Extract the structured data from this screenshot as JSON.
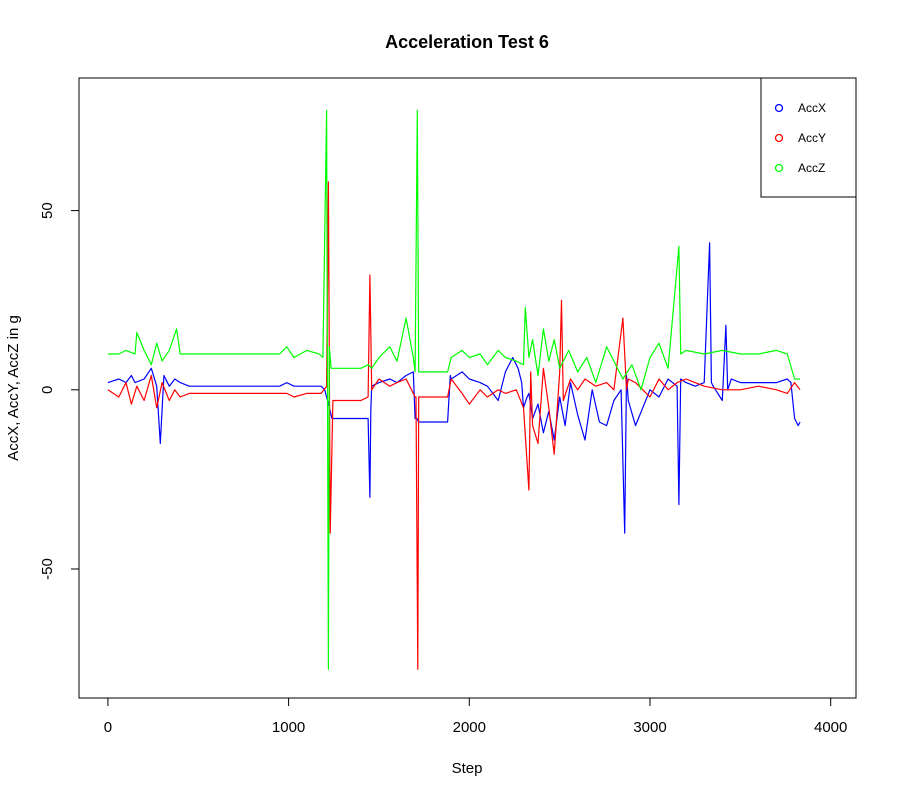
{
  "chart_data": {
    "type": "line",
    "title": "Acceleration Test 6",
    "xlabel": "Step",
    "ylabel": "AccX, AccY, AccZ in g",
    "xlim": [
      -160,
      4140
    ],
    "ylim": [
      -86,
      87
    ],
    "x_ticks": [
      0,
      1000,
      2000,
      3000,
      4000
    ],
    "x_tick_labels": [
      "0",
      "1000",
      "2000",
      "3000",
      "4000"
    ],
    "y_ticks": [
      -50,
      0,
      50
    ],
    "y_tick_labels": [
      "-50",
      "0",
      "50"
    ],
    "legend_position": "top-right",
    "grid": false,
    "series": [
      {
        "name": "AccX",
        "color": "#0000ff",
        "x": [
          0,
          60,
          100,
          130,
          150,
          200,
          240,
          270,
          290,
          310,
          340,
          370,
          400,
          450,
          500,
          600,
          800,
          950,
          990,
          1030,
          1100,
          1180,
          1200,
          1215,
          1225,
          1240,
          1300,
          1400,
          1440,
          1450,
          1455,
          1460,
          1500,
          1560,
          1600,
          1650,
          1690,
          1700,
          1710,
          1720,
          1800,
          1860,
          1880,
          1895,
          1900,
          1960,
          2000,
          2060,
          2100,
          2160,
          2200,
          2240,
          2270,
          2290,
          2300,
          2320,
          2330,
          2350,
          2380,
          2410,
          2440,
          2470,
          2500,
          2530,
          2560,
          2600,
          2640,
          2680,
          2720,
          2760,
          2800,
          2840,
          2860,
          2870,
          2880,
          2920,
          2960,
          3000,
          3050,
          3100,
          3150,
          3160,
          3170,
          3200,
          3250,
          3300,
          3330,
          3340,
          3350,
          3400,
          3420,
          3430,
          3450,
          3500,
          3600,
          3700,
          3760,
          3780,
          3800,
          3820,
          3830
        ],
        "y": [
          2,
          3,
          2,
          4,
          2,
          3,
          6,
          1,
          -15,
          4,
          1,
          3,
          2,
          1,
          1,
          1,
          1,
          1,
          2,
          1,
          1,
          1,
          0,
          -3,
          -5,
          -8,
          -8,
          -8,
          -8,
          -30,
          -6,
          1,
          2,
          3,
          2,
          4,
          5,
          -8,
          -8,
          -9,
          -9,
          -9,
          -9,
          4,
          3,
          5,
          3,
          2,
          1,
          -3,
          5,
          9,
          6,
          2,
          -5,
          -2,
          -1,
          -8,
          -4,
          -12,
          -6,
          -14,
          -2,
          -10,
          2,
          -7,
          -14,
          0,
          -9,
          -10,
          -3,
          0,
          -40,
          4,
          -3,
          -10,
          -5,
          0,
          -2,
          3,
          1,
          -32,
          3,
          2,
          1,
          2,
          41,
          2,
          1,
          -3,
          18,
          0,
          3,
          2,
          2,
          2,
          3,
          2,
          -8,
          -10,
          -9
        ]
      },
      {
        "name": "AccY",
        "color": "#ff0000",
        "x": [
          0,
          60,
          100,
          130,
          160,
          200,
          240,
          270,
          300,
          340,
          370,
          400,
          450,
          500,
          600,
          800,
          950,
          990,
          1030,
          1100,
          1180,
          1210,
          1220,
          1230,
          1245,
          1300,
          1400,
          1440,
          1450,
          1460,
          1500,
          1560,
          1600,
          1650,
          1690,
          1700,
          1705,
          1715,
          1720,
          1800,
          1860,
          1880,
          1900,
          1960,
          2000,
          2060,
          2100,
          2160,
          2200,
          2260,
          2300,
          2330,
          2340,
          2350,
          2380,
          2410,
          2440,
          2470,
          2500,
          2510,
          2520,
          2560,
          2600,
          2640,
          2700,
          2760,
          2800,
          2850,
          2870,
          2880,
          2920,
          2960,
          3000,
          3050,
          3100,
          3150,
          3200,
          3300,
          3400,
          3500,
          3600,
          3700,
          3760,
          3800,
          3830
        ],
        "y": [
          0,
          -2,
          2,
          -4,
          1,
          -3,
          4,
          -5,
          2,
          -3,
          0,
          -2,
          -1,
          -1,
          -1,
          -1,
          -1,
          -1,
          -2,
          -1,
          -1,
          1,
          58,
          -40,
          -3,
          -3,
          -3,
          -2,
          32,
          0,
          3,
          1,
          2,
          3,
          -1,
          -2,
          -2,
          -78,
          -2,
          -2,
          -2,
          -2,
          3,
          -1,
          -4,
          0,
          -2,
          0,
          -1,
          0,
          -5,
          -28,
          5,
          -10,
          -15,
          6,
          -5,
          -18,
          5,
          25,
          -3,
          3,
          0,
          3,
          1,
          2,
          0,
          20,
          0,
          3,
          2,
          0,
          -2,
          3,
          0,
          2,
          3,
          1,
          0,
          0,
          1,
          0,
          -1,
          2,
          0
        ]
      },
      {
        "name": "AccZ",
        "color": "#00ff00",
        "x": [
          0,
          60,
          100,
          150,
          160,
          200,
          240,
          270,
          300,
          340,
          380,
          400,
          450,
          500,
          600,
          800,
          950,
          990,
          1030,
          1100,
          1170,
          1190,
          1210,
          1220,
          1225,
          1235,
          1250,
          1300,
          1400,
          1440,
          1460,
          1500,
          1560,
          1600,
          1650,
          1690,
          1700,
          1712,
          1720,
          1800,
          1860,
          1880,
          1900,
          1960,
          2000,
          2060,
          2100,
          2160,
          2200,
          2260,
          2300,
          2310,
          2330,
          2350,
          2380,
          2410,
          2440,
          2470,
          2500,
          2550,
          2600,
          2650,
          2700,
          2760,
          2800,
          2850,
          2900,
          2950,
          3000,
          3050,
          3100,
          3160,
          3170,
          3200,
          3300,
          3400,
          3500,
          3600,
          3700,
          3760,
          3800,
          3830
        ],
        "y": [
          10,
          10,
          11,
          10,
          16,
          11,
          7,
          13,
          8,
          11,
          17,
          10,
          10,
          10,
          10,
          10,
          10,
          12,
          9,
          11,
          10,
          9,
          78,
          -78,
          12,
          6,
          6,
          6,
          6,
          7,
          6,
          9,
          12,
          8,
          20,
          9,
          5,
          78,
          5,
          5,
          5,
          5,
          9,
          11,
          9,
          10,
          7,
          11,
          9,
          8,
          7,
          23,
          9,
          14,
          4,
          17,
          8,
          14,
          6,
          11,
          5,
          9,
          2,
          12,
          8,
          3,
          7,
          0,
          9,
          13,
          6,
          40,
          10,
          11,
          10,
          11,
          10,
          10,
          11,
          10,
          3,
          3
        ]
      }
    ]
  }
}
